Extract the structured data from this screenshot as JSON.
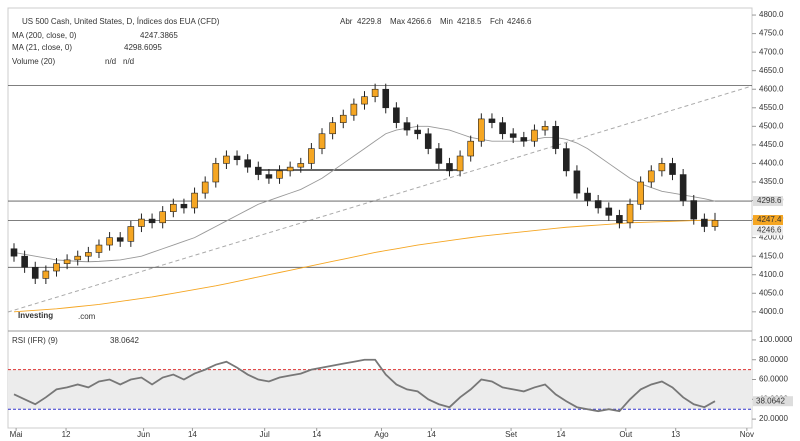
{
  "chart_data": {
    "type": "candlestick",
    "title": "US 500 Cash, United States, D, Índices dos EUA (CFD)",
    "ohlc_labels": [
      "Abr",
      "Max",
      "Min",
      "Fch"
    ],
    "open": [
      4170,
      4150,
      4120,
      4090,
      4110,
      4130,
      4140,
      4150,
      4160,
      4180,
      4200,
      4190,
      4230,
      4250,
      4240,
      4270,
      4290,
      4280,
      4320,
      4350,
      4400,
      4420,
      4410,
      4390,
      4370,
      4360,
      4380,
      4390,
      4400,
      4440,
      4480,
      4510,
      4530,
      4560,
      4580,
      4600,
      4550,
      4510,
      4490,
      4480,
      4440,
      4400,
      4380,
      4420,
      4460,
      4520,
      4510,
      4480,
      4470,
      4460,
      4490,
      4500,
      4440,
      4380,
      4320,
      4300,
      4280,
      4260,
      4240,
      4290,
      4350,
      4380,
      4400,
      4370,
      4300,
      4250,
      4229.8
    ],
    "high": [
      4185,
      4165,
      4135,
      4125,
      4145,
      4155,
      4165,
      4175,
      4195,
      4215,
      4215,
      4245,
      4265,
      4265,
      4285,
      4305,
      4305,
      4335,
      4365,
      4415,
      4435,
      4435,
      4425,
      4405,
      4385,
      4395,
      4405,
      4415,
      4455,
      4495,
      4525,
      4545,
      4575,
      4595,
      4615,
      4615,
      4565,
      4525,
      4505,
      4495,
      4455,
      4415,
      4435,
      4475,
      4535,
      4535,
      4525,
      4495,
      4485,
      4505,
      4515,
      4515,
      4455,
      4395,
      4335,
      4315,
      4295,
      4275,
      4305,
      4365,
      4395,
      4415,
      4415,
      4385,
      4315,
      4265,
      4266.6
    ],
    "low": [
      4135,
      4105,
      4075,
      4075,
      4095,
      4115,
      4125,
      4135,
      4145,
      4165,
      4175,
      4175,
      4215,
      4225,
      4225,
      4255,
      4265,
      4265,
      4305,
      4335,
      4385,
      4395,
      4375,
      4355,
      4345,
      4345,
      4365,
      4375,
      4385,
      4425,
      4465,
      4495,
      4515,
      4545,
      4565,
      4535,
      4495,
      4475,
      4465,
      4425,
      4385,
      4365,
      4365,
      4405,
      4445,
      4495,
      4465,
      4455,
      4445,
      4445,
      4475,
      4425,
      4365,
      4305,
      4285,
      4265,
      4245,
      4225,
      4225,
      4275,
      4335,
      4365,
      4355,
      4285,
      4235,
      4215,
      4218.5
    ],
    "close": [
      4150,
      4120,
      4090,
      4110,
      4130,
      4140,
      4150,
      4160,
      4180,
      4200,
      4190,
      4230,
      4250,
      4240,
      4270,
      4290,
      4280,
      4320,
      4350,
      4400,
      4420,
      4410,
      4390,
      4370,
      4360,
      4380,
      4390,
      4400,
      4440,
      4480,
      4510,
      4530,
      4560,
      4580,
      4600,
      4550,
      4510,
      4490,
      4480,
      4440,
      4400,
      4380,
      4420,
      4460,
      4520,
      4510,
      4480,
      4470,
      4460,
      4490,
      4500,
      4440,
      4380,
      4320,
      4300,
      4280,
      4260,
      4240,
      4290,
      4350,
      4380,
      4400,
      4370,
      4300,
      4250,
      4230,
      4246.6
    ],
    "up_color": "#f5a623",
    "down_color": "#222222",
    "series": [
      {
        "name": "MA (200, close, 0)",
        "color": "#f5a623",
        "last_label": "4247.4",
        "values": [
          4000,
          4002,
          4004,
          4006,
          4008,
          4011,
          4014,
          4017,
          4020,
          4024,
          4028,
          4032,
          4036,
          4040,
          4045,
          4050,
          4055,
          4060,
          4065,
          4070,
          4076,
          4082,
          4088,
          4094,
          4100,
          4106,
          4112,
          4118,
          4124,
          4130,
          4136,
          4142,
          4148,
          4154,
          4160,
          4165,
          4170,
          4175,
          4180,
          4184,
          4188,
          4192,
          4196,
          4200,
          4204,
          4207,
          4210,
          4213,
          4216,
          4219,
          4222,
          4225,
          4228,
          4230,
          4232,
          4234,
          4236,
          4238,
          4240,
          4241,
          4242,
          4243,
          4244,
          4245,
          4246,
          4247,
          4247.3865
        ]
      },
      {
        "name": "MA (21, close, 0)",
        "color": "#999999",
        "last_label": "4298.6",
        "values": [
          4160,
          4155,
          4150,
          4145,
          4140,
          4138,
          4136,
          4135,
          4136,
          4138,
          4140,
          4145,
          4150,
          4160,
          4170,
          4180,
          4190,
          4200,
          4215,
          4230,
          4245,
          4260,
          4275,
          4290,
          4300,
          4310,
          4320,
          4330,
          4345,
          4360,
          4380,
          4400,
          4420,
          4440,
          4460,
          4480,
          4490,
          4495,
          4500,
          4500,
          4495,
          4490,
          4480,
          4470,
          4465,
          4460,
          4460,
          4460,
          4460,
          4465,
          4470,
          4470,
          4465,
          4455,
          4440,
          4420,
          4400,
          4380,
          4360,
          4345,
          4335,
          4325,
          4320,
          4315,
          4310,
          4305,
          4298.6095
        ]
      }
    ],
    "volume": {
      "name": "Volume (20)",
      "values_text": [
        "n/d",
        "n/d"
      ]
    },
    "ylim": [
      3951,
      4819
    ],
    "yticks": [
      {
        "value": 4000,
        "label": "4000.0"
      },
      {
        "value": 4050,
        "label": "4050.0"
      },
      {
        "value": 4100,
        "label": "4100.0"
      },
      {
        "value": 4150,
        "label": "4150.0"
      },
      {
        "value": 4200,
        "label": "4200.0"
      },
      {
        "value": 4250,
        "label": "4250.0"
      },
      {
        "value": 4300,
        "label": "4300.0"
      },
      {
        "value": 4350,
        "label": "4350.0"
      },
      {
        "value": 4400,
        "label": "4400.0"
      },
      {
        "value": 4450,
        "label": "4450.0"
      },
      {
        "value": 4500,
        "label": "4500.0"
      },
      {
        "value": 4550,
        "label": "4550.0"
      },
      {
        "value": 4600,
        "label": "4600.0"
      },
      {
        "value": 4650,
        "label": "4650.0"
      },
      {
        "value": 4700,
        "label": "4700.0"
      },
      {
        "value": 4750,
        "label": "4750.0"
      },
      {
        "value": 4800,
        "label": "4800.0"
      }
    ],
    "hlines": [
      4610,
      4298.6,
      4246.6,
      4120
    ],
    "logo": "Investing",
    "logo_suffix": ".com",
    "rsi": {
      "name": "RSI (IFR) (9)",
      "color": "#777777",
      "values": [
        45,
        40,
        35,
        42,
        50,
        52,
        55,
        52,
        58,
        60,
        55,
        60,
        62,
        55,
        62,
        65,
        60,
        66,
        70,
        75,
        78,
        72,
        65,
        60,
        58,
        62,
        64,
        66,
        70,
        72,
        74,
        76,
        78,
        80,
        80,
        65,
        55,
        50,
        48,
        40,
        35,
        32,
        42,
        50,
        60,
        58,
        52,
        50,
        48,
        52,
        55,
        45,
        38,
        32,
        30,
        28,
        30,
        28,
        40,
        50,
        55,
        58,
        52,
        42,
        35,
        32,
        38.0642
      ],
      "ylim": [
        11,
        107
      ],
      "yticks": [
        {
          "value": 20,
          "label": "20.0000"
        },
        {
          "value": 40,
          "label": "40.0000"
        },
        {
          "value": 60,
          "label": "60.0000"
        },
        {
          "value": 80,
          "label": "80.0000"
        },
        {
          "value": 100,
          "label": "100.0000"
        }
      ],
      "levels": [
        70,
        30
      ]
    },
    "x_ticks": [
      {
        "index": 0.2,
        "label": "Mai"
      },
      {
        "index": 4.9,
        "label": "12"
      },
      {
        "index": 12.2,
        "label": "Jun"
      },
      {
        "index": 16.8,
        "label": "14"
      },
      {
        "index": 23.6,
        "label": "Jul"
      },
      {
        "index": 28.5,
        "label": "14"
      },
      {
        "index": 34.6,
        "label": "Ago"
      },
      {
        "index": 39.3,
        "label": "14"
      },
      {
        "index": 46.8,
        "label": "Set"
      },
      {
        "index": 51.5,
        "label": "14"
      },
      {
        "index": 57.6,
        "label": "Out"
      },
      {
        "index": 62.3,
        "label": "13"
      },
      {
        "index": 69,
        "label": "Nov"
      }
    ]
  }
}
